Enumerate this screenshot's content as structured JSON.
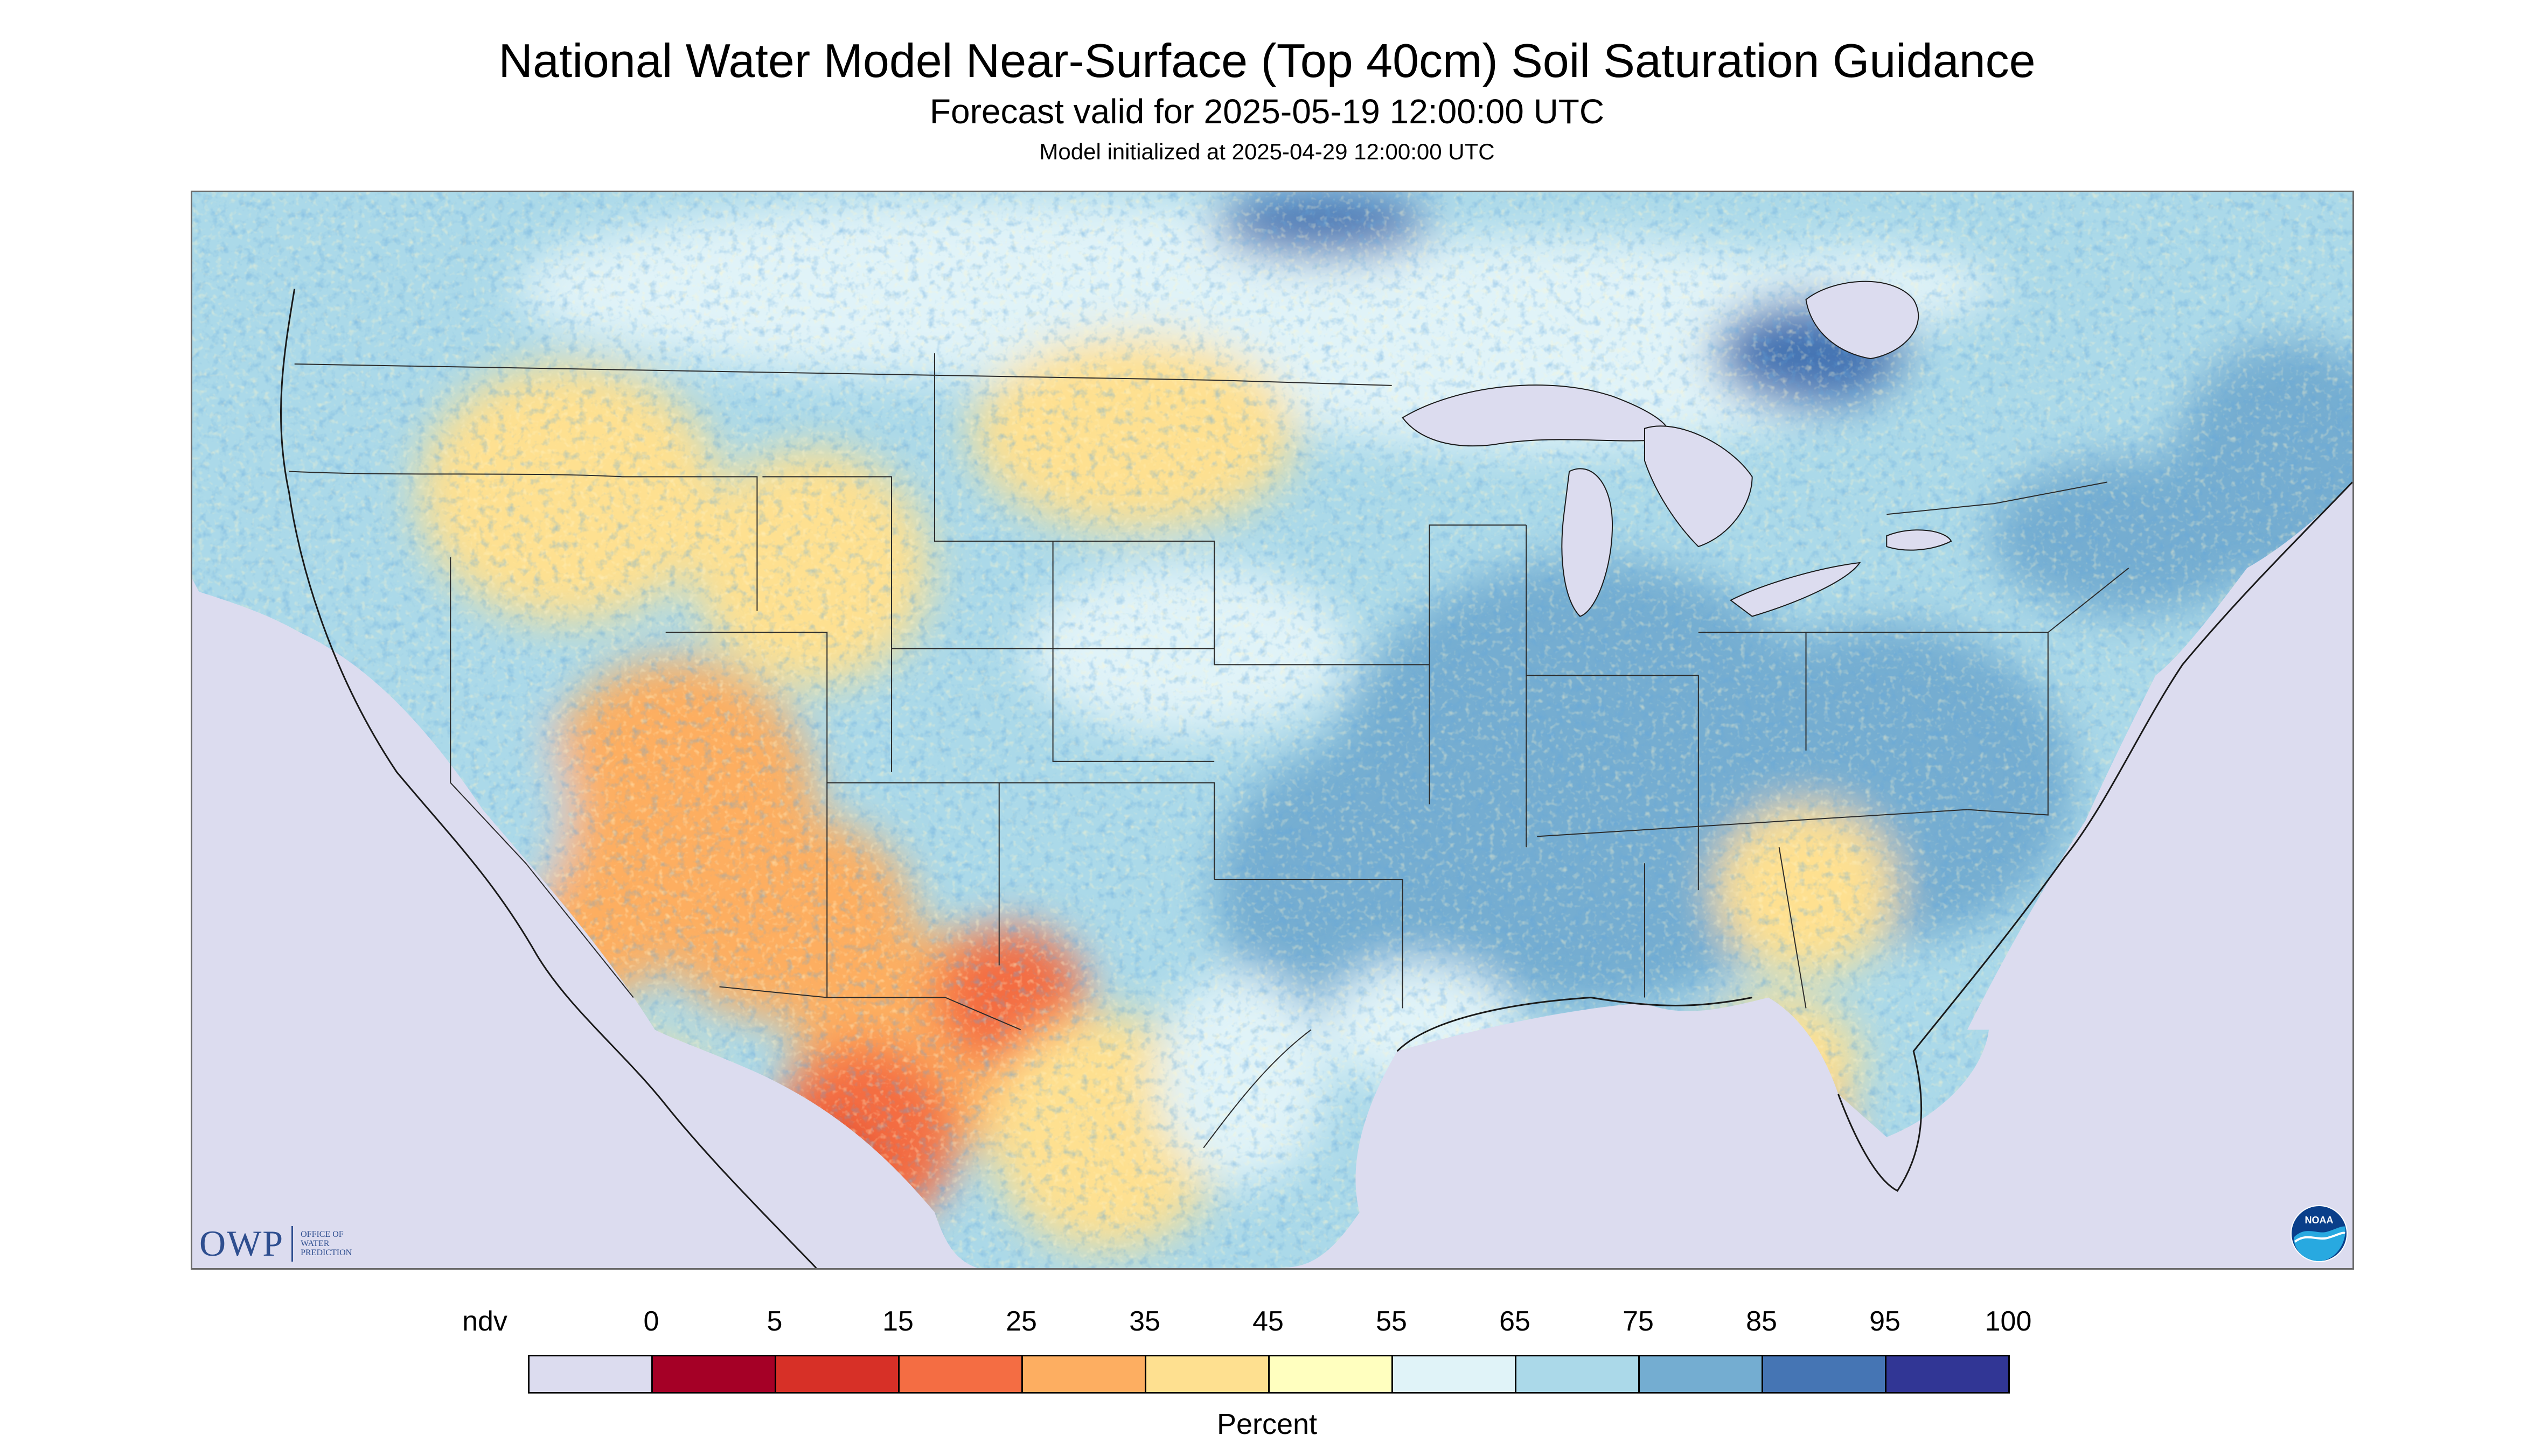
{
  "header": {
    "title": "National Water Model Near-Surface (Top 40cm) Soil Saturation Guidance",
    "subtitle": "Forecast valid for 2025-05-19 12:00:00 UTC",
    "init_line": "Model initialized at 2025-04-29 12:00:00 UTC"
  },
  "map": {
    "region": "CONUS",
    "colors": {
      "ndv": "#dcdcef",
      "water": "#dcdcef",
      "state_lines": "#2b2b2b"
    }
  },
  "logos": {
    "owp_word": "OWP",
    "owp_sub": "OFFICE OF\nWATER\nPREDICTION",
    "noaa_word": "NOAA"
  },
  "legend": {
    "title": "Percent",
    "labels": [
      "ndv",
      "0",
      "5",
      "15",
      "25",
      "35",
      "45",
      "55",
      "65",
      "75",
      "85",
      "95",
      "100"
    ],
    "bins": [
      {
        "range": "ndv",
        "color": "#dcdcef"
      },
      {
        "range": "0-5",
        "color": "#a50026"
      },
      {
        "range": "5-15",
        "color": "#d73027"
      },
      {
        "range": "15-25",
        "color": "#f46d43"
      },
      {
        "range": "25-35",
        "color": "#fdae61"
      },
      {
        "range": "35-45",
        "color": "#fee090"
      },
      {
        "range": "45-55",
        "color": "#ffffbf"
      },
      {
        "range": "55-65",
        "color": "#e0f3f8"
      },
      {
        "range": "65-75",
        "color": "#abd9e9"
      },
      {
        "range": "75-85",
        "color": "#74add1"
      },
      {
        "range": "85-95",
        "color": "#4575b4"
      },
      {
        "range": "95-100",
        "color": "#313695"
      }
    ]
  }
}
